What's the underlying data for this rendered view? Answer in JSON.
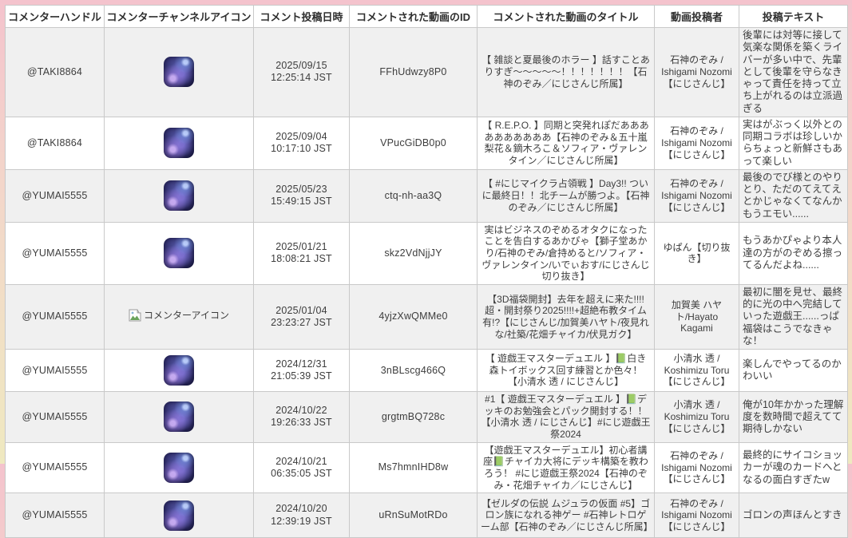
{
  "table": {
    "columns": [
      {
        "key": "handle",
        "label": "コメンターハンドル"
      },
      {
        "key": "icon",
        "label": "コメンターチャンネルアイコン"
      },
      {
        "key": "datetime",
        "label": "コメント投稿日時"
      },
      {
        "key": "video_id",
        "label": "コメントされた動画のID"
      },
      {
        "key": "video_title",
        "label": "コメントされた動画のタイトル"
      },
      {
        "key": "video_poster",
        "label": "動画投稿者"
      },
      {
        "key": "comment_text",
        "label": "投稿テキスト"
      }
    ],
    "broken_icon_alt": "コメンターアイコン",
    "rows": [
      {
        "handle": "@TAKI8864",
        "icon": "galaxy-avatar",
        "datetime": "2025/09/15 12:25:14 JST",
        "video_id": "FFhUdwzy8P0",
        "video_title": "【 雑談と夏最後のホラー 】話すことありすぎ～～～～～！！！！！！！【石神のぞみ／にじさんじ所属】",
        "video_poster": "石神のぞみ / Ishigami Nozomi【にじさんじ】",
        "comment_text": "後輩には対等に接して気楽な関係を築くライバーが多い中で、先輩として後輩を守らなきゃって責任を持って立ち上がれるのは立派過ぎる"
      },
      {
        "handle": "@TAKI8864",
        "icon": "galaxy-avatar",
        "datetime": "2025/09/04 10:17:10 JST",
        "video_id": "VPucGiDB0p0",
        "video_title": "【 R.E.P.O. 】同期と突発れぽだああああああああああ【石神のぞみ＆五十嵐梨花＆鏑木ろこ＆ソフィア・ヴァレンタイン／にじさんじ所属】",
        "video_poster": "石神のぞみ / Ishigami Nozomi【にじさんじ】",
        "comment_text": "実はがぶっく以外との同期コラボは珍しいからちょっと新鮮さもあって楽しい"
      },
      {
        "handle": "@YUMAI5555",
        "icon": "galaxy-avatar",
        "datetime": "2025/05/23 15:49:15 JST",
        "video_id": "ctq-nh-aa3Q",
        "video_title": "【 #にじマイクラ占領戦 】Day3!! ついに最終日！！北チームが勝つよ。【石神のぞみ／にじさんじ所属】",
        "video_poster": "石神のぞみ / Ishigami Nozomi【にじさんじ】",
        "comment_text": "最後のでび様とのやりとり、ただのてえてえとかじゃなくてなんかもうエモい......"
      },
      {
        "handle": "@YUMAI5555",
        "icon": "galaxy-avatar",
        "datetime": "2025/01/21 18:08:21 JST",
        "video_id": "skz2VdNjjJY",
        "video_title": "実はビジネスのぞめるオタクになったことを告白するあかぴゃ【獅子堂あかり/石神のぞみ/倉持めると/ソフィア・ヴァレンタイン/いでぃおす/にじさんじ切り抜き】",
        "video_poster": "ゆぱん【切り抜き】",
        "comment_text": "もうあかぴゃより本人達の方がのぞめる擦ってるんだよね......"
      },
      {
        "handle": "@YUMAI5555",
        "icon": "broken",
        "datetime": "2025/01/04 23:23:27 JST",
        "video_id": "4yjzXwQMMe0",
        "video_title": "【3D福袋開封】去年を超えに来た!!!!超・開封祭り2025!!!!+超絶布教タイム有!?【にじさんじ/加賀美ハヤト/夜見れな/社築/花畑チャイカ/伏見ガク】",
        "video_poster": "加賀美 ハヤト/Hayato Kagami",
        "comment_text": "最初に闇を見せ、最終的に光の中へ完結していった遊戯王......っぱ福袋はこうでなきゃな！"
      },
      {
        "handle": "@YUMAI5555",
        "icon": "galaxy-avatar",
        "datetime": "2024/12/31 21:05:39 JST",
        "video_id": "3nBLscg466Q",
        "video_title": "【 遊戯王マスターデュエル 】📗白き森トイボックス回す練習とか色々！【小清水 透 / にじさんじ】",
        "video_poster": "小清水 透 / Koshimizu Toru【にじさんじ】",
        "comment_text": "楽しんでやってるのかわいい"
      },
      {
        "handle": "@YUMAI5555",
        "icon": "galaxy-avatar",
        "datetime": "2024/10/22 19:26:33 JST",
        "video_id": "grgtmBQ728c",
        "video_title": "#1【 遊戯王マスターデュエル 】📗デッキのお勉強会とパック開封する！！【小清水 透 / にじさんじ】#にじ遊戯王祭2024",
        "video_poster": "小清水 透 / Koshimizu Toru【にじさんじ】",
        "comment_text": "俺が10年かかった理解度を数時間で超えてて期待しかない"
      },
      {
        "handle": "@YUMAI5555",
        "icon": "galaxy-avatar",
        "datetime": "2024/10/21 06:35:05 JST",
        "video_id": "Ms7hmnIHD8w",
        "video_title": "【遊戯王マスターデュエル】初心者講座📗チャイカ大将にデッキ構築を教わろう！ #にじ遊戯王祭2024【石神のぞみ・花畑チャイカ／にじさんじ】",
        "video_poster": "石神のぞみ / Ishigami Nozomi【にじさんじ】",
        "comment_text": "最終的にサイコショッカーが魂のカードへとなるの面白すぎたw"
      },
      {
        "handle": "@YUMAI5555",
        "icon": "galaxy-avatar",
        "datetime": "2024/10/20 12:39:19 JST",
        "video_id": "uRnSuMotRDo",
        "video_title": "【ゼルダの伝説 ムジュラの仮面 #5】ゴロン族になれる神ゲー #石神レトロゲーム部【石神のぞみ／にじさんじ所属】",
        "video_poster": "石神のぞみ / Ishigami Nozomi【にじさんじ】",
        "comment_text": "ゴロンの声ほんとすき"
      }
    ]
  }
}
